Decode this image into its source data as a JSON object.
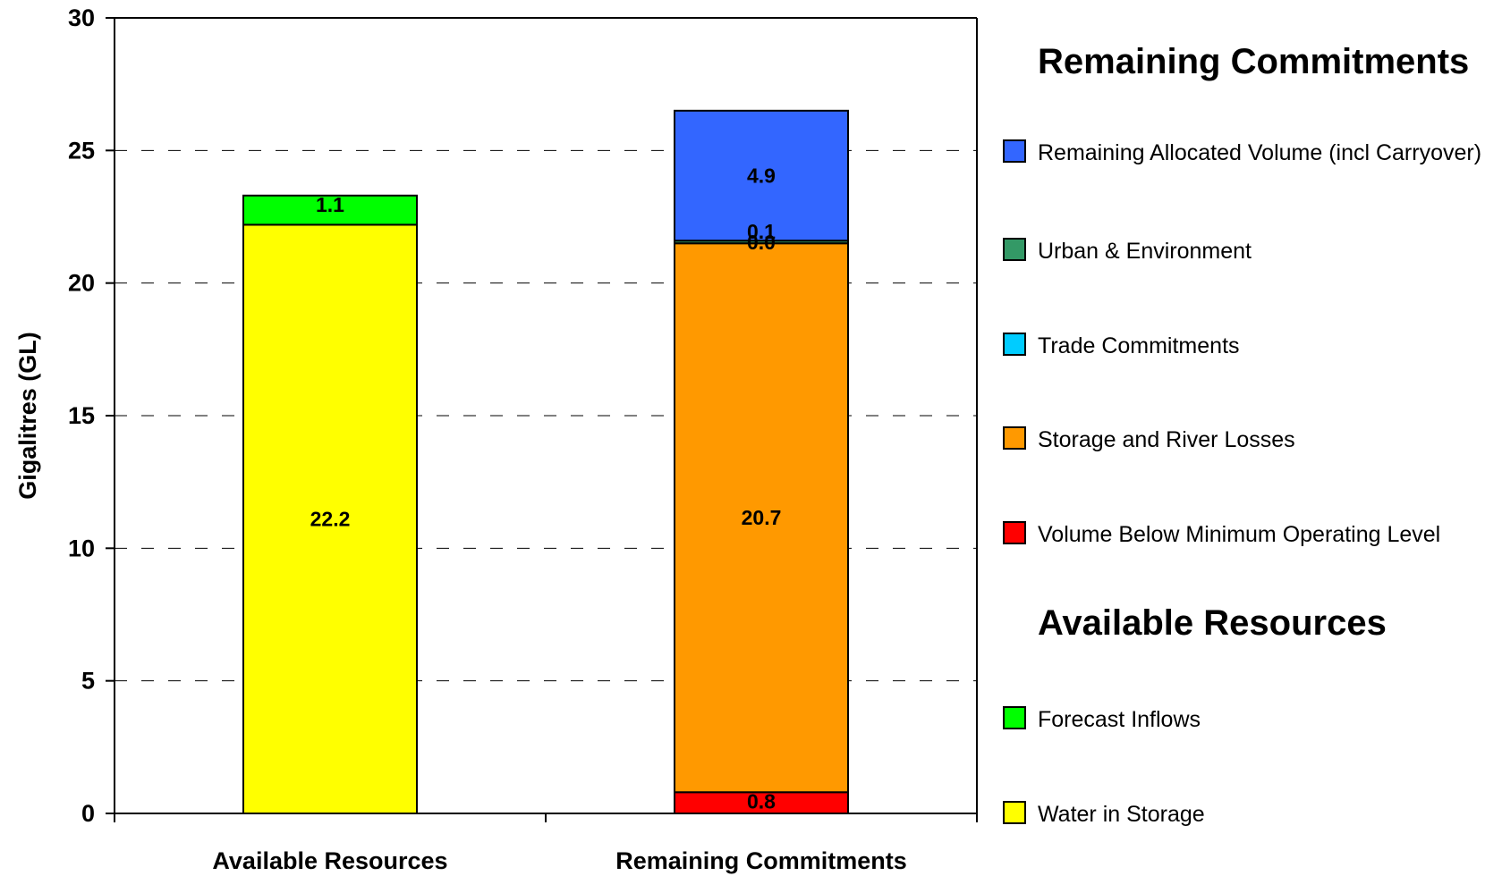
{
  "chart_data": {
    "type": "bar",
    "stacked": true,
    "ylabel": "Gigalitres (GL)",
    "ylim": [
      0,
      30
    ],
    "yticks": [
      0,
      5,
      10,
      15,
      20,
      25,
      30
    ],
    "grid": "horizontal dashed",
    "categories": [
      "Available Resources",
      "Remaining Commitments"
    ],
    "series": [
      {
        "name": "Water in Storage",
        "color": "#ffff00",
        "values": [
          22.2,
          0
        ],
        "labels": [
          "22.2",
          ""
        ]
      },
      {
        "name": "Forecast Inflows",
        "color": "#00ff00",
        "values": [
          1.1,
          0
        ],
        "labels": [
          "1.1",
          ""
        ]
      },
      {
        "name": "Volume Below Minimum Operating Level",
        "color": "#ff0000",
        "values": [
          0,
          0.8
        ],
        "labels": [
          "",
          "0.8"
        ]
      },
      {
        "name": "Storage and River Losses",
        "color": "#ff9900",
        "values": [
          0,
          20.7
        ],
        "labels": [
          "",
          "20.7"
        ]
      },
      {
        "name": "Trade Commitments",
        "color": "#00ccff",
        "values": [
          0,
          0.0
        ],
        "labels": [
          "",
          "0.0"
        ]
      },
      {
        "name": "Urban & Environment",
        "color": "#339966",
        "values": [
          0,
          0.1
        ],
        "labels": [
          "",
          "0.1"
        ]
      },
      {
        "name": "Remaining Allocated Volume (incl Carryover)",
        "color": "#3366ff",
        "values": [
          0,
          4.9
        ],
        "labels": [
          "",
          "4.9"
        ]
      }
    ],
    "legend": {
      "placement": "right",
      "groups": [
        {
          "heading": "Remaining Commitments",
          "items": [
            {
              "label": "Remaining Allocated Volume (incl Carryover)",
              "color": "#3366ff"
            },
            {
              "label": "Urban & Environment",
              "color": "#339966"
            },
            {
              "label": "Trade Commitments",
              "color": "#00ccff"
            },
            {
              "label": "Storage and River Losses",
              "color": "#ff9900"
            },
            {
              "label": "Volume Below Minimum Operating Level",
              "color": "#ff0000"
            }
          ]
        },
        {
          "heading": "Available Resources",
          "items": [
            {
              "label": "Forecast Inflows",
              "color": "#00ff00"
            },
            {
              "label": "Water in Storage",
              "color": "#ffff00"
            }
          ]
        }
      ]
    }
  }
}
